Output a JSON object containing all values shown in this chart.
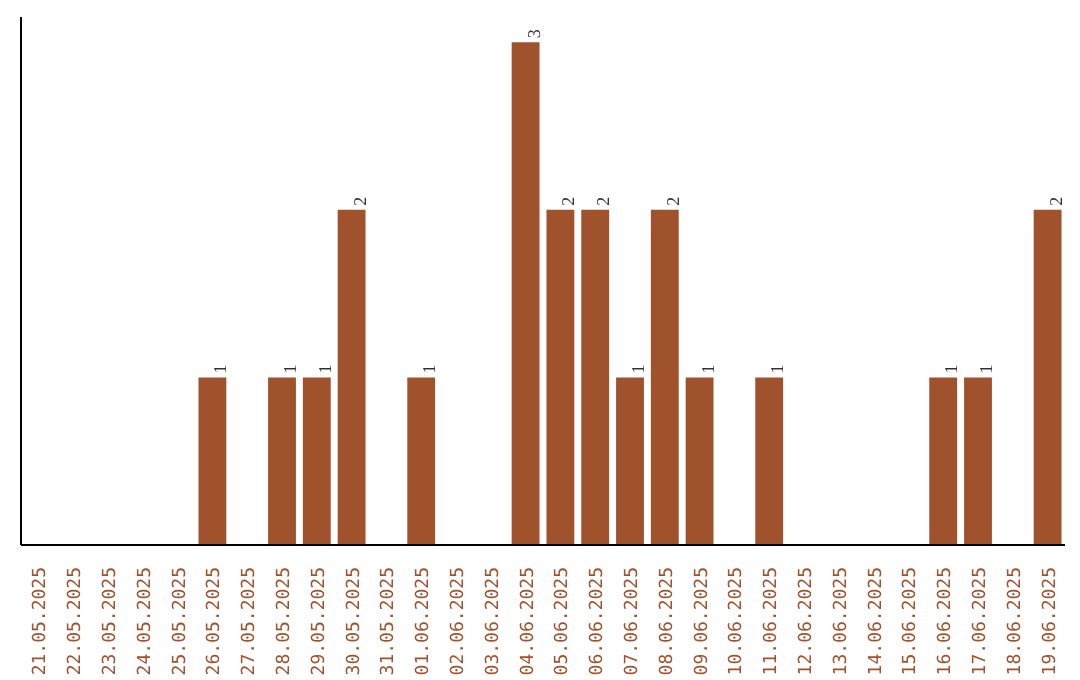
{
  "chart_data": {
    "type": "bar",
    "categories": [
      "21.05.2025",
      "22.05.2025",
      "23.05.2025",
      "24.05.2025",
      "25.05.2025",
      "26.05.2025",
      "27.05.2025",
      "28.05.2025",
      "29.05.2025",
      "30.05.2025",
      "31.05.2025",
      "01.06.2025",
      "02.06.2025",
      "03.06.2025",
      "04.06.2025",
      "05.06.2025",
      "06.06.2025",
      "07.06.2025",
      "08.06.2025",
      "09.06.2025",
      "10.06.2025",
      "11.06.2025",
      "12.06.2025",
      "13.06.2025",
      "14.06.2025",
      "15.06.2025",
      "16.06.2025",
      "17.06.2025",
      "18.06.2025",
      "19.06.2025"
    ],
    "values": [
      0,
      0,
      0,
      0,
      0,
      1,
      0,
      1,
      1,
      2,
      0,
      1,
      0,
      0,
      3,
      2,
      2,
      1,
      2,
      1,
      0,
      1,
      0,
      0,
      0,
      0,
      1,
      1,
      0,
      2
    ],
    "value_labels": [
      null,
      null,
      null,
      null,
      null,
      "1",
      null,
      "1",
      "1",
      "2",
      null,
      "1",
      null,
      null,
      "3",
      "2",
      "2",
      "1",
      "2",
      "1",
      null,
      "1",
      null,
      null,
      null,
      null,
      "1",
      "1",
      null,
      "2"
    ],
    "color": "#a0522d",
    "grid": false
  }
}
